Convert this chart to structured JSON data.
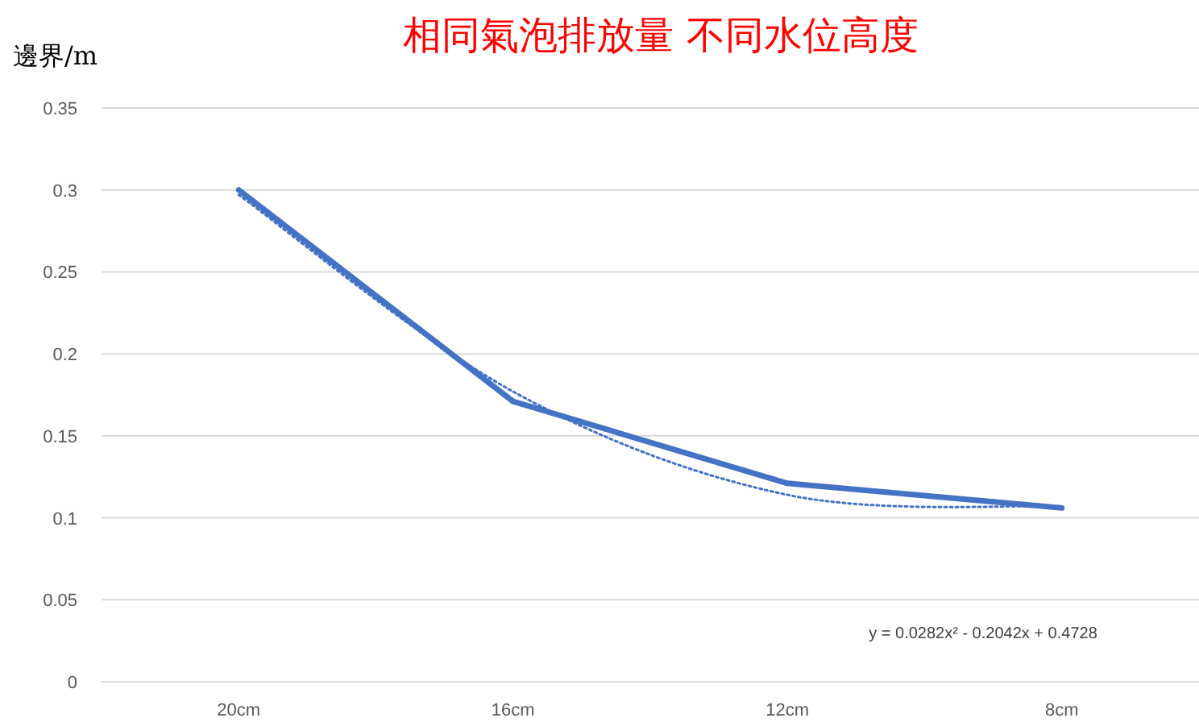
{
  "chart_data": {
    "type": "line",
    "title": "相同氣泡排放量 不同水位高度",
    "ylabel": "邊界/m",
    "categories": [
      "20cm",
      "16cm",
      "12cm",
      "8cm"
    ],
    "series": [
      {
        "type": "line",
        "color": "#4472c4",
        "values": [
          0.3,
          0.171,
          0.121,
          0.106
        ],
        "line_style": "solid"
      },
      {
        "type": "line",
        "color": "#4472c4",
        "values": [
          0.297,
          0.177,
          0.114,
          0.107
        ],
        "line_style": "dotted"
      }
    ],
    "ylim": [
      0,
      0.35
    ],
    "yticks": [
      0,
      0.05,
      0.1,
      0.15,
      0.2,
      0.25,
      0.3,
      0.35
    ],
    "grid": "y",
    "annotations": [
      "y = 0.0282x² - 0.2042x + 0.4728"
    ]
  }
}
